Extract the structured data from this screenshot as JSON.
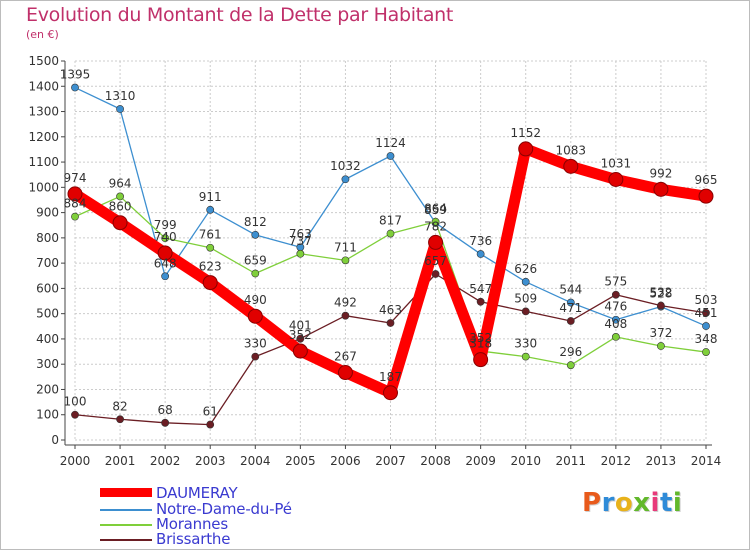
{
  "title": "Evolution du Montant de la Dette par Habitant",
  "subtitle": "(en €)",
  "logo": {
    "text": "Proxiti",
    "colors": [
      "#e85a1b",
      "#2e8bd8",
      "#e8b21b",
      "#62b82b",
      "#e83a7a",
      "#2e8bd8",
      "#62b82b"
    ]
  },
  "chart_data": {
    "type": "line",
    "x": [
      "2000",
      "2001",
      "2002",
      "2003",
      "2004",
      "2005",
      "2006",
      "2007",
      "2008",
      "2009",
      "2010",
      "2011",
      "2012",
      "2013",
      "2014"
    ],
    "ylim": [
      0,
      1500
    ],
    "yticks": [
      0,
      100,
      200,
      300,
      400,
      500,
      600,
      700,
      800,
      900,
      1000,
      1100,
      1200,
      1300,
      1400,
      1500
    ],
    "grid": true,
    "legend_position": "bottom-left",
    "series": [
      {
        "name": "Notre-Dame-du-Pé",
        "color": "#3d8fd0",
        "values": [
          1395,
          1310,
          648,
          911,
          812,
          763,
          1032,
          1124,
          859,
          736,
          626,
          544,
          476,
          528,
          451
        ],
        "labels": [
          "1395",
          "1310",
          "648",
          "911",
          "812",
          "763",
          "1032",
          "1124",
          "859",
          "736",
          "626",
          "544",
          "476",
          "528",
          "451"
        ]
      },
      {
        "name": "Morannes",
        "color": "#7fcf3a",
        "values": [
          884,
          964,
          799,
          761,
          659,
          737,
          711,
          817,
          864,
          352,
          330,
          296,
          408,
          372,
          348
        ],
        "labels": [
          "884",
          "964",
          "799",
          "761",
          "659",
          "737",
          "711",
          "817",
          "864",
          "352",
          "330",
          "296",
          "408",
          "372",
          "348"
        ]
      },
      {
        "name": "Brissarthe",
        "color": "#6b1e24",
        "values": [
          100,
          82,
          68,
          61,
          330,
          401,
          492,
          463,
          657,
          547,
          509,
          471,
          575,
          532,
          503
        ],
        "labels": [
          "100",
          "82",
          "68",
          "61",
          "330",
          "401",
          "492",
          "463",
          "657",
          "547",
          "509",
          "471",
          "575",
          "532",
          "503"
        ]
      },
      {
        "name": "DAUMERAY",
        "color": "#ff0000",
        "values": [
          974,
          860,
          740,
          623,
          490,
          352,
          267,
          187,
          782,
          318,
          1152,
          1083,
          1031,
          992,
          965
        ],
        "labels": [
          "974",
          "860",
          "740",
          "623",
          "490",
          "352",
          "267",
          "187",
          "782",
          "318",
          "1152",
          "1083",
          "1031",
          "992",
          "965"
        ]
      }
    ],
    "legend_order": [
      "DAUMERAY",
      "Notre-Dame-du-Pé",
      "Morannes",
      "Brissarthe"
    ]
  }
}
